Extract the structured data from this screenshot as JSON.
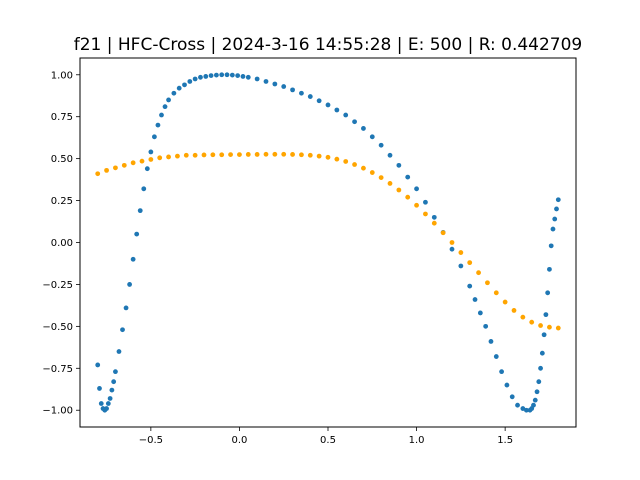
{
  "chart_data": {
    "type": "scatter",
    "title": "f21 | HFC-Cross | 2024-3-16 14:55:28 | E:    500 | R: 0.442709",
    "xlabel": "",
    "ylabel": "",
    "xlim": [
      -0.9,
      1.9
    ],
    "ylim": [
      -1.1,
      1.1
    ],
    "x_ticks": [
      -0.5,
      0.0,
      0.5,
      1.0,
      1.5
    ],
    "x_tick_labels": [
      "−0.5",
      "0.0",
      "0.5",
      "1.0",
      "1.5"
    ],
    "y_ticks": [
      -1.0,
      -0.75,
      -0.5,
      -0.25,
      0.0,
      0.25,
      0.5,
      0.75,
      1.0
    ],
    "y_tick_labels": [
      "−1.00",
      "−0.75",
      "−0.50",
      "−0.25",
      "0.00",
      "0.25",
      "0.50",
      "0.75",
      "1.00"
    ],
    "grid": false,
    "legend": "none",
    "series": [
      {
        "color": "#1f77b4",
        "x": [
          -0.8,
          -0.79,
          -0.78,
          -0.77,
          -0.76,
          -0.75,
          -0.74,
          -0.73,
          -0.72,
          -0.71,
          -0.7,
          -0.68,
          -0.66,
          -0.64,
          -0.62,
          -0.6,
          -0.58,
          -0.56,
          -0.54,
          -0.52,
          -0.5,
          -0.48,
          -0.46,
          -0.44,
          -0.42,
          -0.4,
          -0.37,
          -0.34,
          -0.31,
          -0.28,
          -0.25,
          -0.22,
          -0.19,
          -0.16,
          -0.13,
          -0.1,
          -0.07,
          -0.04,
          -0.01,
          0.02,
          0.05,
          0.1,
          0.15,
          0.2,
          0.25,
          0.3,
          0.35,
          0.4,
          0.45,
          0.5,
          0.55,
          0.6,
          0.65,
          0.7,
          0.75,
          0.8,
          0.85,
          0.9,
          0.95,
          1.0,
          1.05,
          1.1,
          1.15,
          1.2,
          1.25,
          1.3,
          1.33,
          1.36,
          1.39,
          1.42,
          1.45,
          1.48,
          1.51,
          1.54,
          1.57,
          1.6,
          1.62,
          1.64,
          1.65,
          1.66,
          1.67,
          1.68,
          1.69,
          1.7,
          1.71,
          1.72,
          1.73,
          1.74,
          1.75,
          1.76,
          1.77,
          1.78,
          1.79,
          1.8
        ],
        "y": [
          -0.73,
          -0.87,
          -0.96,
          -0.99,
          -1.0,
          -0.99,
          -0.96,
          -0.93,
          -0.88,
          -0.83,
          -0.77,
          -0.65,
          -0.52,
          -0.39,
          -0.25,
          -0.1,
          0.05,
          0.19,
          0.32,
          0.44,
          0.54,
          0.63,
          0.7,
          0.76,
          0.81,
          0.85,
          0.89,
          0.92,
          0.94,
          0.96,
          0.975,
          0.985,
          0.99,
          0.995,
          0.998,
          1.0,
          1.0,
          0.998,
          0.995,
          0.99,
          0.985,
          0.975,
          0.96,
          0.945,
          0.93,
          0.91,
          0.89,
          0.87,
          0.845,
          0.82,
          0.79,
          0.76,
          0.72,
          0.68,
          0.63,
          0.58,
          0.52,
          0.46,
          0.39,
          0.32,
          0.24,
          0.15,
          0.06,
          -0.04,
          -0.14,
          -0.26,
          -0.34,
          -0.42,
          -0.5,
          -0.59,
          -0.68,
          -0.77,
          -0.85,
          -0.92,
          -0.97,
          -0.99,
          -1.0,
          -1.0,
          -0.99,
          -0.97,
          -0.94,
          -0.89,
          -0.83,
          -0.75,
          -0.66,
          -0.55,
          -0.43,
          -0.3,
          -0.16,
          -0.02,
          0.08,
          0.14,
          0.2,
          0.255
        ]
      },
      {
        "color": "#ffa500",
        "x": [
          -0.8,
          -0.75,
          -0.7,
          -0.65,
          -0.6,
          -0.55,
          -0.5,
          -0.45,
          -0.4,
          -0.35,
          -0.3,
          -0.25,
          -0.2,
          -0.15,
          -0.1,
          -0.05,
          0.0,
          0.05,
          0.1,
          0.15,
          0.2,
          0.25,
          0.3,
          0.35,
          0.4,
          0.45,
          0.5,
          0.55,
          0.6,
          0.65,
          0.7,
          0.75,
          0.8,
          0.85,
          0.9,
          0.95,
          1.0,
          1.05,
          1.1,
          1.15,
          1.2,
          1.25,
          1.3,
          1.35,
          1.4,
          1.45,
          1.5,
          1.55,
          1.6,
          1.65,
          1.7,
          1.75,
          1.8
        ],
        "y": [
          0.41,
          0.43,
          0.445,
          0.46,
          0.475,
          0.485,
          0.495,
          0.505,
          0.51,
          0.515,
          0.52,
          0.52,
          0.522,
          0.523,
          0.523,
          0.524,
          0.524,
          0.525,
          0.525,
          0.526,
          0.526,
          0.526,
          0.525,
          0.523,
          0.52,
          0.515,
          0.508,
          0.497,
          0.483,
          0.465,
          0.443,
          0.417,
          0.387,
          0.352,
          0.313,
          0.27,
          0.222,
          0.17,
          0.115,
          0.058,
          0.0,
          -0.06,
          -0.12,
          -0.18,
          -0.24,
          -0.3,
          -0.355,
          -0.405,
          -0.445,
          -0.475,
          -0.495,
          -0.505,
          -0.51
        ]
      }
    ]
  }
}
